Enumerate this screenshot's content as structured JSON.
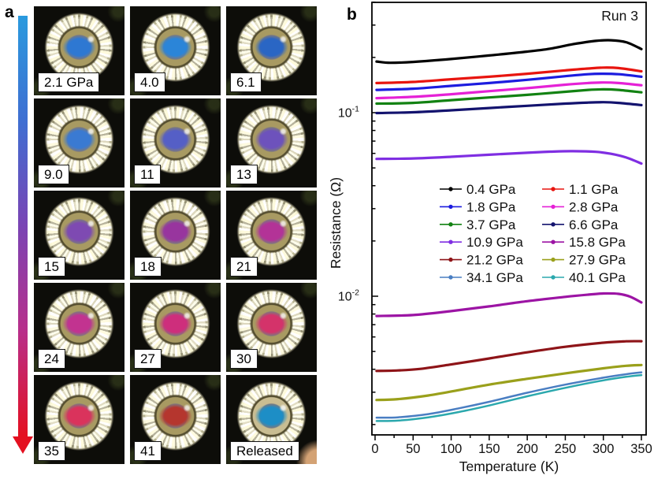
{
  "figure": {
    "panel_a_label": "a",
    "panel_b_label": "b"
  },
  "panel_a": {
    "pressure_arrow": {
      "direction": "top-to-bottom",
      "colors": [
        "#2a9ade",
        "#3f6fd2",
        "#7a44b4",
        "#b82f8a",
        "#e41020"
      ]
    },
    "photos": [
      {
        "label": "2.1 GPa",
        "sample_color": "#2e78d2"
      },
      {
        "label": "4.0",
        "sample_color": "#2b85d8"
      },
      {
        "label": "6.1",
        "sample_color": "#2a66c4"
      },
      {
        "label": "9.0",
        "sample_color": "#3a7ad2"
      },
      {
        "label": "11",
        "sample_color": "#555fc6"
      },
      {
        "label": "13",
        "sample_color": "#6d52bc"
      },
      {
        "label": "15",
        "sample_color": "#7e4ab2"
      },
      {
        "label": "18",
        "sample_color": "#98359e"
      },
      {
        "label": "21",
        "sample_color": "#b33397"
      },
      {
        "label": "24",
        "sample_color": "#c23390"
      },
      {
        "label": "27",
        "sample_color": "#ce2e7c"
      },
      {
        "label": "30",
        "sample_color": "#d4336a"
      },
      {
        "label": "35",
        "sample_color": "#da335c"
      },
      {
        "label": "41",
        "sample_color": "#b5362e"
      },
      {
        "label": "Released",
        "sample_color": "#1d8ec6"
      }
    ]
  },
  "chart_data": {
    "type": "line",
    "annotation": "Run 3",
    "xlabel": "Temperature (K)",
    "ylabel": "Resistance (Ω)",
    "xlim": [
      0,
      350
    ],
    "x_major_ticks": [
      0,
      50,
      100,
      150,
      200,
      250,
      300,
      350
    ],
    "x_minor_ticks": [
      25,
      75,
      125,
      175,
      225,
      275,
      325
    ],
    "yscale": "log",
    "ylim": [
      0.0018,
      0.4
    ],
    "y_major_ticks": [
      0.01,
      0.1
    ],
    "y_tick_exponents": [
      -2,
      -1
    ],
    "grid": false,
    "legend_position": "inside center",
    "series": [
      {
        "name": "0.4 GPa",
        "color": "#000000",
        "x": [
          2,
          20,
          50,
          100,
          150,
          200,
          230,
          260,
          290,
          310,
          330,
          350
        ],
        "y": [
          0.19,
          0.187,
          0.189,
          0.196,
          0.205,
          0.215,
          0.223,
          0.236,
          0.246,
          0.248,
          0.242,
          0.222
        ]
      },
      {
        "name": "1.1 GPa",
        "color": "#e8150f",
        "x": [
          2,
          50,
          100,
          150,
          200,
          250,
          280,
          300,
          320,
          350
        ],
        "y": [
          0.145,
          0.147,
          0.152,
          0.157,
          0.163,
          0.17,
          0.174,
          0.176,
          0.175,
          0.168
        ]
      },
      {
        "name": "1.8 GPa",
        "color": "#1c1cdf",
        "x": [
          2,
          50,
          100,
          150,
          200,
          250,
          280,
          300,
          320,
          350
        ],
        "y": [
          0.133,
          0.135,
          0.14,
          0.145,
          0.151,
          0.158,
          0.162,
          0.163,
          0.162,
          0.157
        ]
      },
      {
        "name": "2.8 GPa",
        "color": "#e521d6",
        "x": [
          2,
          50,
          100,
          150,
          200,
          250,
          280,
          300,
          320,
          350
        ],
        "y": [
          0.12,
          0.122,
          0.126,
          0.131,
          0.136,
          0.142,
          0.145,
          0.146,
          0.145,
          0.141
        ]
      },
      {
        "name": "3.7 GPa",
        "color": "#128212",
        "x": [
          2,
          50,
          100,
          150,
          200,
          250,
          280,
          300,
          320,
          350
        ],
        "y": [
          0.112,
          0.113,
          0.117,
          0.121,
          0.125,
          0.13,
          0.133,
          0.134,
          0.133,
          0.129
        ]
      },
      {
        "name": "6.6 GPa",
        "color": "#13136e",
        "x": [
          2,
          50,
          100,
          150,
          200,
          250,
          280,
          300,
          320,
          350
        ],
        "y": [
          0.0995,
          0.1005,
          0.103,
          0.106,
          0.109,
          0.112,
          0.1135,
          0.114,
          0.113,
          0.11
        ]
      },
      {
        "name": "10.9 GPa",
        "color": "#7f2ee2",
        "x": [
          2,
          50,
          100,
          150,
          200,
          230,
          260,
          290,
          310,
          330,
          350
        ],
        "y": [
          0.056,
          0.0563,
          0.0575,
          0.059,
          0.0605,
          0.0613,
          0.0617,
          0.0612,
          0.0597,
          0.057,
          0.0528
        ]
      },
      {
        "name": "15.8 GPa",
        "color": "#9c14a4",
        "x": [
          2,
          50,
          100,
          150,
          200,
          250,
          280,
          300,
          320,
          335,
          350
        ],
        "y": [
          0.0078,
          0.0079,
          0.0083,
          0.0088,
          0.0094,
          0.00992,
          0.0102,
          0.01035,
          0.0103,
          0.00995,
          0.00925
        ]
      },
      {
        "name": "21.2 GPa",
        "color": "#8e1418",
        "x": [
          2,
          30,
          60,
          100,
          150,
          200,
          250,
          300,
          330,
          350
        ],
        "y": [
          0.00392,
          0.00394,
          0.00402,
          0.00425,
          0.00458,
          0.00495,
          0.0053,
          0.00558,
          0.00568,
          0.00569
        ]
      },
      {
        "name": "27.9 GPa",
        "color": "#9aa01b",
        "x": [
          2,
          30,
          70,
          110,
          150,
          200,
          250,
          300,
          330,
          350
        ],
        "y": [
          0.00272,
          0.00275,
          0.00288,
          0.00308,
          0.0033,
          0.00355,
          0.0038,
          0.00405,
          0.00418,
          0.00422
        ]
      },
      {
        "name": "34.1 GPa",
        "color": "#4a7ec2",
        "x": [
          2,
          30,
          70,
          110,
          150,
          200,
          250,
          300,
          330,
          350
        ],
        "y": [
          0.00218,
          0.00219,
          0.00228,
          0.00245,
          0.00266,
          0.00298,
          0.0033,
          0.0036,
          0.00376,
          0.00385
        ]
      },
      {
        "name": "40.1 GPa",
        "color": "#2ba8ad",
        "x": [
          2,
          30,
          70,
          110,
          150,
          200,
          250,
          300,
          330,
          350
        ],
        "y": [
          0.00209,
          0.0021,
          0.00219,
          0.00234,
          0.00254,
          0.00285,
          0.00317,
          0.00348,
          0.00364,
          0.00372
        ]
      }
    ]
  }
}
